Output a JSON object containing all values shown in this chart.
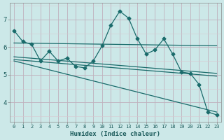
{
  "xlabel": "Humidex (Indice chaleur)",
  "bg_color": "#cce8e8",
  "grid_color_major": "#c0b0bc",
  "grid_color_minor": "#d8c8d0",
  "line_color": "#1a6b6b",
  "xlim": [
    -0.5,
    23.5
  ],
  "ylim": [
    3.3,
    7.6
  ],
  "xticks": [
    0,
    1,
    2,
    3,
    4,
    5,
    6,
    7,
    8,
    9,
    10,
    11,
    12,
    13,
    14,
    15,
    16,
    17,
    18,
    19,
    20,
    21,
    22,
    23
  ],
  "yticks": [
    4,
    5,
    6,
    7
  ],
  "series1_x": [
    0,
    1,
    2,
    3,
    4,
    5,
    6,
    7,
    8,
    9,
    10,
    11,
    12,
    13,
    14,
    15,
    16,
    17,
    18,
    19,
    20,
    21,
    22,
    23
  ],
  "series1_y": [
    6.6,
    6.2,
    6.1,
    5.5,
    5.85,
    5.5,
    5.6,
    5.3,
    5.25,
    5.5,
    6.05,
    6.8,
    7.3,
    7.05,
    6.3,
    5.75,
    5.9,
    6.3,
    5.75,
    5.1,
    5.05,
    4.65,
    3.65,
    3.55
  ],
  "trend1_x": [
    0,
    23
  ],
  "trend1_y": [
    6.15,
    6.05
  ],
  "trend2_x": [
    0,
    23
  ],
  "trend2_y": [
    5.65,
    5.05
  ],
  "trend3_x": [
    0,
    23
  ],
  "trend3_y": [
    5.55,
    4.95
  ],
  "trend4_x": [
    0,
    23
  ],
  "trend4_y": [
    5.5,
    3.65
  ],
  "marker": "D",
  "markersize": 2.5,
  "linewidth": 0.9
}
